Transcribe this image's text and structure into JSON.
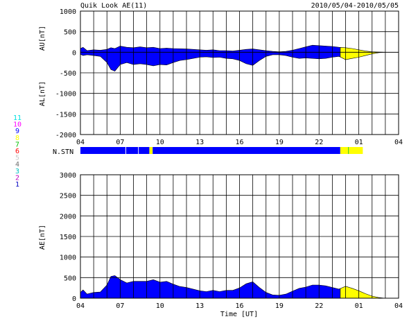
{
  "header": {
    "title": "Quik Look AE(11)",
    "date_range": "2010/05/04-2010/05/05"
  },
  "colors": {
    "blue": "#0000ff",
    "yellow": "#ffff00",
    "grid": "#000000"
  },
  "stn_legend": {
    "label": "N.STN",
    "items": [
      {
        "text": "11",
        "color": "#00e0e0"
      },
      {
        "text": "10",
        "color": "#ff00ff"
      },
      {
        "text": "9",
        "color": "#0000ff"
      },
      {
        "text": "8",
        "color": "#ffff00"
      },
      {
        "text": "7",
        "color": "#00c000"
      },
      {
        "text": "6",
        "color": "#ff0000"
      },
      {
        "text": "5",
        "color": "#c8c8c8"
      },
      {
        "text": "4",
        "color": "#707070"
      },
      {
        "text": "3",
        "color": "#00c0c0"
      },
      {
        "text": "2",
        "color": "#c000c0"
      },
      {
        "text": "1",
        "color": "#0000c0"
      }
    ],
    "segments": [
      {
        "start": 4.0,
        "end": 7.4,
        "color": "blue"
      },
      {
        "start": 7.45,
        "end": 8.35,
        "color": "blue"
      },
      {
        "start": 8.4,
        "end": 9.2,
        "color": "blue"
      },
      {
        "start": 9.2,
        "end": 9.45,
        "color": "yellow"
      },
      {
        "start": 9.45,
        "end": 23.6,
        "color": "blue"
      },
      {
        "start": 23.6,
        "end": 24.2,
        "color": "yellow"
      },
      {
        "start": 24.2,
        "end": 24.25,
        "color": "green"
      },
      {
        "start": 24.25,
        "end": 25.3,
        "color": "yellow"
      }
    ]
  },
  "chart_data": [
    {
      "type": "area",
      "name": "AU/AL",
      "ylabel_upper": "AU[nT]",
      "ylabel_lower": "AL[nT]",
      "xlim": [
        4,
        28
      ],
      "ylim": [
        -2000,
        1000
      ],
      "yticks": [
        1000,
        500,
        0,
        -500,
        -1000,
        -1500,
        -2000
      ],
      "xticks": [
        "04",
        "07",
        "10",
        "13",
        "16",
        "19",
        "22",
        "01",
        "04"
      ],
      "grid": true,
      "au": {
        "x": [
          4.0,
          4.2,
          4.5,
          5.0,
          5.5,
          6.0,
          6.3,
          6.6,
          7.0,
          7.5,
          8.0,
          8.5,
          9.0,
          9.5,
          10.0,
          10.5,
          11.0,
          11.5,
          12.0,
          12.5,
          13.0,
          13.5,
          14.0,
          14.5,
          15.0,
          15.5,
          16.0,
          16.5,
          17.0,
          17.5,
          18.0,
          18.5,
          19.0,
          19.5,
          20.0,
          20.5,
          21.0,
          21.5,
          22.0,
          22.5,
          23.0,
          23.5,
          24.0,
          24.5,
          25.0,
          25.5,
          26.0,
          26.5,
          27.0,
          28.0
        ],
        "y": [
          90,
          120,
          40,
          60,
          50,
          70,
          110,
          90,
          150,
          120,
          110,
          130,
          110,
          120,
          90,
          100,
          90,
          85,
          80,
          70,
          60,
          50,
          60,
          40,
          40,
          30,
          50,
          70,
          80,
          60,
          40,
          20,
          10,
          20,
          50,
          90,
          130,
          170,
          160,
          150,
          140,
          120,
          110,
          90,
          60,
          30,
          10,
          5,
          0,
          0
        ]
      },
      "al": {
        "x": [
          4.0,
          4.2,
          4.5,
          5.0,
          5.5,
          6.0,
          6.3,
          6.6,
          7.0,
          7.5,
          8.0,
          8.5,
          9.0,
          9.5,
          10.0,
          10.5,
          11.0,
          11.5,
          12.0,
          12.5,
          13.0,
          13.5,
          14.0,
          14.5,
          15.0,
          15.5,
          16.0,
          16.5,
          17.0,
          17.5,
          18.0,
          18.5,
          19.0,
          19.5,
          20.0,
          20.5,
          21.0,
          21.5,
          22.0,
          22.5,
          23.0,
          23.5,
          24.0,
          24.5,
          25.0,
          25.5,
          26.0,
          26.5,
          27.0,
          28.0
        ],
        "y": [
          -50,
          -80,
          -60,
          -80,
          -100,
          -250,
          -420,
          -460,
          -300,
          -250,
          -300,
          -280,
          -300,
          -330,
          -300,
          -310,
          -250,
          -200,
          -180,
          -150,
          -120,
          -110,
          -130,
          -120,
          -150,
          -160,
          -200,
          -280,
          -320,
          -200,
          -100,
          -60,
          -60,
          -80,
          -120,
          -150,
          -140,
          -150,
          -160,
          -150,
          -120,
          -100,
          -180,
          -150,
          -120,
          -80,
          -40,
          -10,
          0,
          0
        ]
      },
      "yellow_from": 23.6
    },
    {
      "type": "area",
      "name": "AE",
      "ylabel": "AE[nT]",
      "xlabel": "Time [UT]",
      "xlim": [
        4,
        28
      ],
      "ylim": [
        0,
        3000
      ],
      "yticks": [
        3000,
        2500,
        2000,
        1500,
        1000,
        500,
        0
      ],
      "xticks": [
        "04",
        "07",
        "10",
        "13",
        "16",
        "19",
        "22",
        "01",
        "04"
      ],
      "grid": true,
      "ae": {
        "x": [
          4.0,
          4.2,
          4.5,
          5.0,
          5.5,
          6.0,
          6.3,
          6.6,
          7.0,
          7.5,
          8.0,
          8.5,
          9.0,
          9.5,
          10.0,
          10.5,
          11.0,
          11.5,
          12.0,
          12.5,
          13.0,
          13.5,
          14.0,
          14.5,
          15.0,
          15.5,
          16.0,
          16.5,
          17.0,
          17.5,
          18.0,
          18.5,
          19.0,
          19.5,
          20.0,
          20.5,
          21.0,
          21.5,
          22.0,
          22.5,
          23.0,
          23.5,
          24.0,
          24.5,
          25.0,
          25.5,
          26.0,
          26.5,
          27.0,
          28.0
        ],
        "y": [
          140,
          200,
          100,
          140,
          150,
          320,
          530,
          550,
          450,
          370,
          410,
          410,
          410,
          450,
          390,
          410,
          340,
          285,
          260,
          220,
          180,
          160,
          190,
          160,
          190,
          190,
          250,
          350,
          400,
          260,
          140,
          80,
          70,
          100,
          170,
          240,
          270,
          320,
          320,
          300,
          260,
          220,
          290,
          240,
          180,
          110,
          50,
          15,
          0,
          0
        ]
      },
      "yellow_from": 23.6
    }
  ]
}
